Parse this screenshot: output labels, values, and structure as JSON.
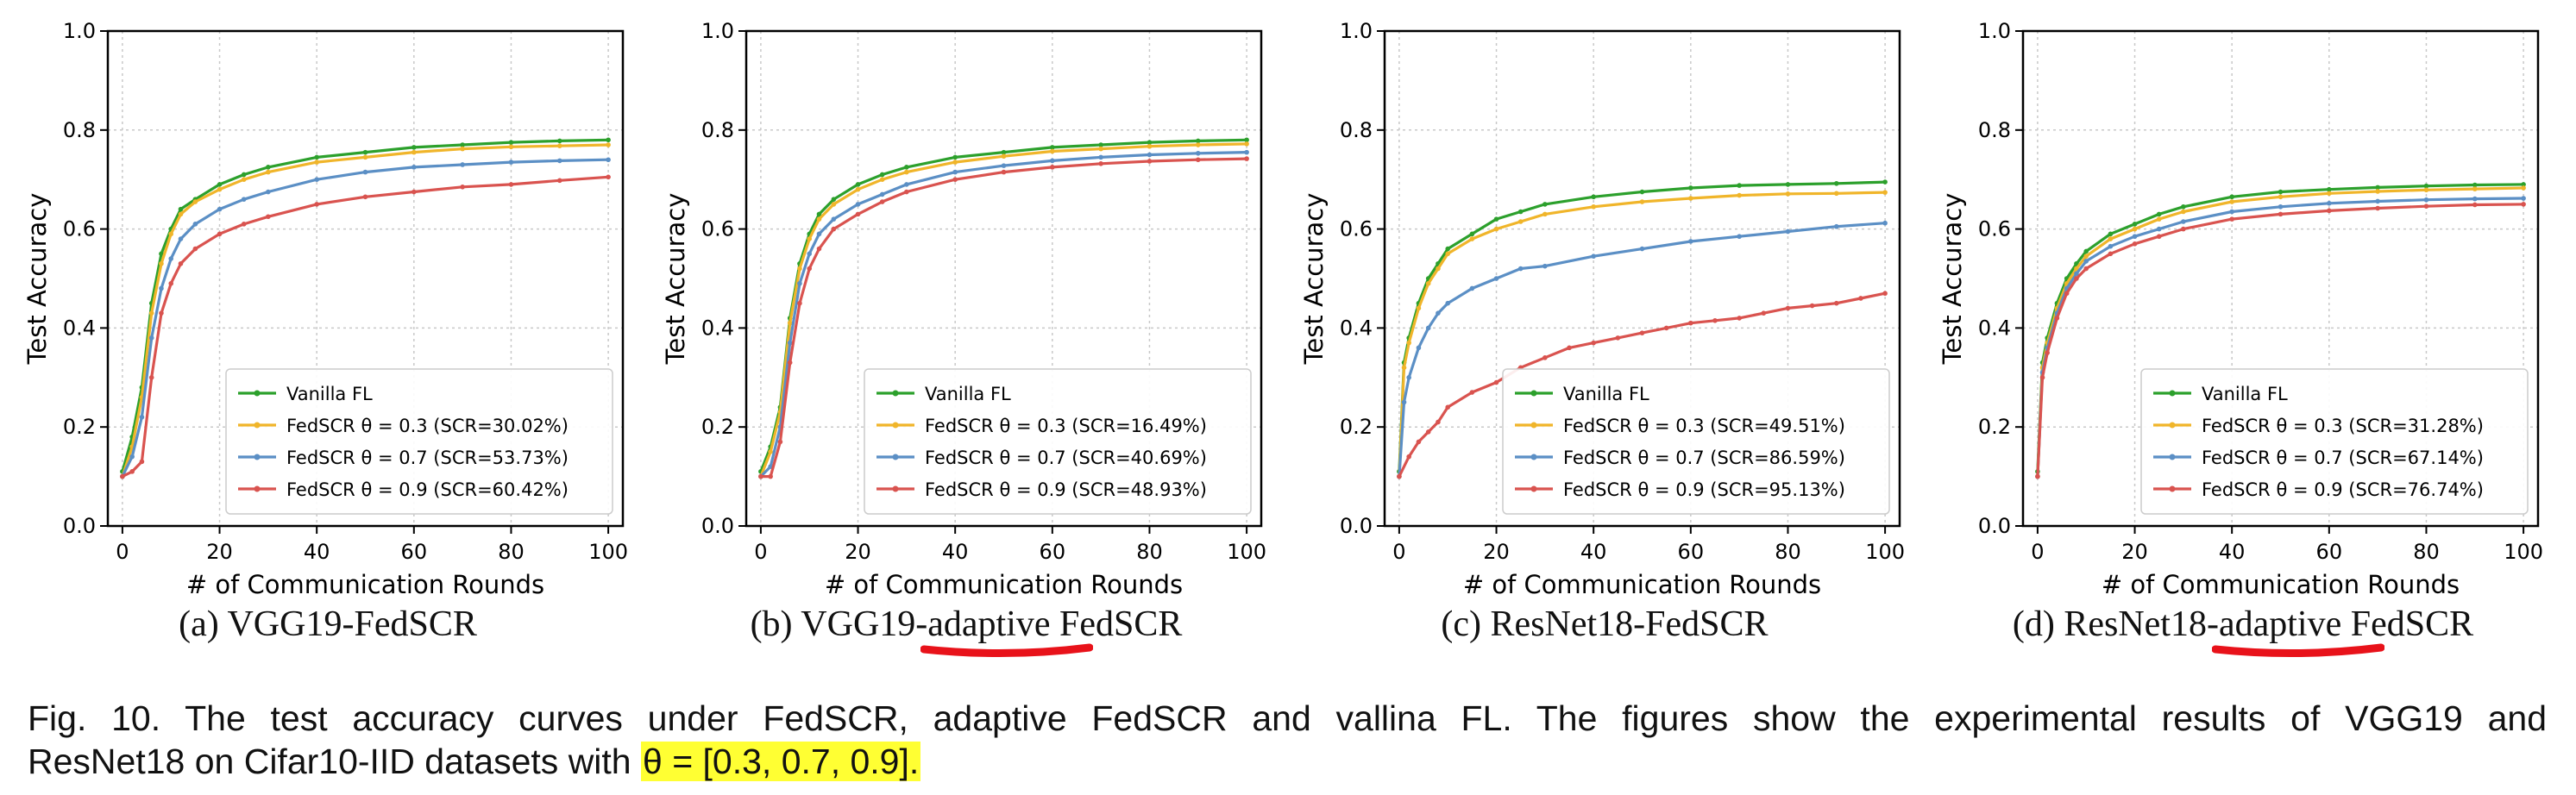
{
  "colors": {
    "vanilla": "#2ca02c",
    "theta03": "#f0b52a",
    "theta07": "#5b8fc5",
    "theta09": "#d9534f",
    "underline": "#e8121a",
    "highlight": "#ffff33"
  },
  "subcaptions": [
    {
      "prefix": "(a)  VGG19-FedSCR",
      "highlight": "",
      "suffix": ""
    },
    {
      "prefix": "(b)  VGG19-",
      "highlight": "adaptive",
      "suffix": " FedSCR"
    },
    {
      "prefix": "(c)  ResNet18-FedSCR",
      "highlight": "",
      "suffix": ""
    },
    {
      "prefix": "(d)  ResNet18-",
      "highlight": "adaptive",
      "suffix": " FedSCR"
    }
  ],
  "caption": {
    "line1": "Fig. 10. The test accuracy curves under FedSCR, adaptive FedSCR and vallina FL. The figures show the experimental results of VGG19 and",
    "line2_prefix": "ResNet18 on Cifar10-IID datasets with ",
    "highlight": "θ = [0.3, 0.7, 0.9]."
  },
  "chart_data": [
    {
      "type": "line",
      "xlabel": "# of Communication Rounds",
      "ylabel": "Test Accuracy",
      "xlim": [
        -3,
        103
      ],
      "ylim": [
        0,
        1.0
      ],
      "xticks": [
        0,
        20,
        40,
        60,
        80,
        100
      ],
      "yticks": [
        0.0,
        0.2,
        0.4,
        0.6,
        0.8,
        1.0
      ],
      "grid": true,
      "legend": "bottom-right",
      "series": [
        {
          "name": "Vanilla FL",
          "x": [
            0,
            2,
            4,
            6,
            8,
            10,
            12,
            15,
            20,
            25,
            30,
            40,
            50,
            60,
            70,
            80,
            90,
            100
          ],
          "y": [
            0.11,
            0.18,
            0.28,
            0.45,
            0.55,
            0.6,
            0.64,
            0.66,
            0.69,
            0.71,
            0.725,
            0.745,
            0.755,
            0.765,
            0.77,
            0.775,
            0.778,
            0.78
          ]
        },
        {
          "name": "FedSCR θ = 0.3 (SCR=30.02%)",
          "x": [
            0,
            2,
            4,
            6,
            8,
            10,
            12,
            15,
            20,
            25,
            30,
            40,
            50,
            60,
            70,
            80,
            90,
            100
          ],
          "y": [
            0.1,
            0.16,
            0.26,
            0.43,
            0.53,
            0.59,
            0.63,
            0.655,
            0.68,
            0.7,
            0.715,
            0.735,
            0.745,
            0.755,
            0.762,
            0.766,
            0.768,
            0.77
          ]
        },
        {
          "name": "FedSCR θ = 0.7 (SCR=53.73%)",
          "x": [
            0,
            2,
            4,
            6,
            8,
            10,
            12,
            15,
            20,
            25,
            30,
            40,
            50,
            60,
            70,
            80,
            90,
            100
          ],
          "y": [
            0.1,
            0.14,
            0.22,
            0.38,
            0.48,
            0.54,
            0.58,
            0.61,
            0.64,
            0.66,
            0.675,
            0.7,
            0.715,
            0.725,
            0.73,
            0.735,
            0.738,
            0.74
          ]
        },
        {
          "name": "FedSCR θ = 0.9 (SCR=60.42%)",
          "x": [
            0,
            2,
            4,
            6,
            8,
            10,
            12,
            15,
            20,
            25,
            30,
            40,
            50,
            60,
            70,
            80,
            90,
            100
          ],
          "y": [
            0.1,
            0.11,
            0.13,
            0.3,
            0.43,
            0.49,
            0.53,
            0.56,
            0.59,
            0.61,
            0.625,
            0.65,
            0.665,
            0.675,
            0.685,
            0.69,
            0.698,
            0.705
          ]
        }
      ]
    },
    {
      "type": "line",
      "xlabel": "# of Communication Rounds",
      "ylabel": "Test Accuracy",
      "xlim": [
        -3,
        103
      ],
      "ylim": [
        0,
        1.0
      ],
      "xticks": [
        0,
        20,
        40,
        60,
        80,
        100
      ],
      "yticks": [
        0.0,
        0.2,
        0.4,
        0.6,
        0.8,
        1.0
      ],
      "grid": true,
      "legend": "bottom-right",
      "series": [
        {
          "name": "Vanilla FL",
          "x": [
            0,
            2,
            4,
            6,
            8,
            10,
            12,
            15,
            20,
            25,
            30,
            40,
            50,
            60,
            70,
            80,
            90,
            100
          ],
          "y": [
            0.11,
            0.16,
            0.24,
            0.42,
            0.53,
            0.59,
            0.63,
            0.66,
            0.69,
            0.71,
            0.725,
            0.745,
            0.755,
            0.765,
            0.77,
            0.775,
            0.778,
            0.78
          ]
        },
        {
          "name": "FedSCR θ = 0.3 (SCR=16.49%)",
          "x": [
            0,
            2,
            4,
            6,
            8,
            10,
            12,
            15,
            20,
            25,
            30,
            40,
            50,
            60,
            70,
            80,
            90,
            100
          ],
          "y": [
            0.1,
            0.15,
            0.23,
            0.41,
            0.52,
            0.58,
            0.62,
            0.65,
            0.68,
            0.7,
            0.715,
            0.735,
            0.747,
            0.757,
            0.762,
            0.767,
            0.77,
            0.772
          ]
        },
        {
          "name": "FedSCR θ = 0.7 (SCR=40.69%)",
          "x": [
            0,
            2,
            4,
            6,
            8,
            10,
            12,
            15,
            20,
            25,
            30,
            40,
            50,
            60,
            70,
            80,
            90,
            100
          ],
          "y": [
            0.1,
            0.12,
            0.2,
            0.37,
            0.49,
            0.55,
            0.59,
            0.62,
            0.65,
            0.67,
            0.69,
            0.715,
            0.728,
            0.738,
            0.745,
            0.75,
            0.753,
            0.755
          ]
        },
        {
          "name": "FedSCR θ = 0.9 (SCR=48.93%)",
          "x": [
            0,
            2,
            4,
            6,
            8,
            10,
            12,
            15,
            20,
            25,
            30,
            40,
            50,
            60,
            70,
            80,
            90,
            100
          ],
          "y": [
            0.1,
            0.1,
            0.17,
            0.33,
            0.45,
            0.52,
            0.56,
            0.6,
            0.63,
            0.655,
            0.675,
            0.7,
            0.715,
            0.725,
            0.732,
            0.737,
            0.74,
            0.742
          ]
        }
      ]
    },
    {
      "type": "line",
      "xlabel": "# of Communication Rounds",
      "ylabel": "Test Accuracy",
      "xlim": [
        -3,
        103
      ],
      "ylim": [
        0,
        1.0
      ],
      "xticks": [
        0,
        20,
        40,
        60,
        80,
        100
      ],
      "yticks": [
        0.0,
        0.2,
        0.4,
        0.6,
        0.8,
        1.0
      ],
      "grid": true,
      "legend": "bottom-right",
      "series": [
        {
          "name": "Vanilla FL",
          "x": [
            0,
            1,
            2,
            4,
            6,
            8,
            10,
            15,
            20,
            25,
            30,
            40,
            50,
            60,
            70,
            80,
            90,
            100
          ],
          "y": [
            0.11,
            0.33,
            0.38,
            0.45,
            0.5,
            0.53,
            0.56,
            0.59,
            0.62,
            0.635,
            0.65,
            0.665,
            0.675,
            0.683,
            0.688,
            0.69,
            0.692,
            0.695
          ]
        },
        {
          "name": "FedSCR θ = 0.3 (SCR=49.51%)",
          "x": [
            0,
            1,
            2,
            4,
            6,
            8,
            10,
            15,
            20,
            25,
            30,
            40,
            50,
            60,
            70,
            80,
            90,
            100
          ],
          "y": [
            0.1,
            0.32,
            0.37,
            0.44,
            0.49,
            0.52,
            0.55,
            0.58,
            0.6,
            0.615,
            0.63,
            0.645,
            0.655,
            0.662,
            0.668,
            0.671,
            0.672,
            0.674
          ]
        },
        {
          "name": "FedSCR θ = 0.7 (SCR=86.59%)",
          "x": [
            0,
            1,
            2,
            4,
            6,
            8,
            10,
            15,
            20,
            25,
            30,
            40,
            50,
            60,
            70,
            80,
            90,
            100
          ],
          "y": [
            0.1,
            0.25,
            0.3,
            0.36,
            0.4,
            0.43,
            0.45,
            0.48,
            0.5,
            0.52,
            0.525,
            0.545,
            0.56,
            0.575,
            0.585,
            0.595,
            0.605,
            0.612
          ]
        },
        {
          "name": "FedSCR θ = 0.9 (SCR=95.13%)",
          "x": [
            0,
            2,
            4,
            6,
            8,
            10,
            15,
            20,
            25,
            30,
            35,
            40,
            45,
            50,
            55,
            60,
            65,
            70,
            75,
            80,
            85,
            90,
            95,
            100
          ],
          "y": [
            0.1,
            0.14,
            0.17,
            0.19,
            0.21,
            0.24,
            0.27,
            0.29,
            0.32,
            0.34,
            0.36,
            0.37,
            0.38,
            0.39,
            0.4,
            0.41,
            0.415,
            0.42,
            0.43,
            0.44,
            0.445,
            0.45,
            0.46,
            0.47
          ]
        }
      ]
    },
    {
      "type": "line",
      "xlabel": "# of Communication Rounds",
      "ylabel": "Test Accuracy",
      "xlim": [
        -3,
        103
      ],
      "ylim": [
        0,
        1.0
      ],
      "xticks": [
        0,
        20,
        40,
        60,
        80,
        100
      ],
      "yticks": [
        0.0,
        0.2,
        0.4,
        0.6,
        0.8,
        1.0
      ],
      "grid": true,
      "legend": "bottom-right",
      "series": [
        {
          "name": "Vanilla FL",
          "x": [
            0,
            1,
            2,
            4,
            6,
            8,
            10,
            15,
            20,
            25,
            30,
            40,
            50,
            60,
            70,
            80,
            90,
            100
          ],
          "y": [
            0.11,
            0.33,
            0.38,
            0.45,
            0.5,
            0.53,
            0.555,
            0.59,
            0.61,
            0.63,
            0.645,
            0.665,
            0.675,
            0.68,
            0.684,
            0.687,
            0.689,
            0.69
          ]
        },
        {
          "name": "FedSCR θ = 0.3 (SCR=31.28%)",
          "x": [
            0,
            1,
            2,
            4,
            6,
            8,
            10,
            15,
            20,
            25,
            30,
            40,
            50,
            60,
            70,
            80,
            90,
            100
          ],
          "y": [
            0.1,
            0.32,
            0.37,
            0.44,
            0.49,
            0.52,
            0.545,
            0.58,
            0.6,
            0.62,
            0.635,
            0.655,
            0.665,
            0.672,
            0.676,
            0.679,
            0.681,
            0.683
          ]
        },
        {
          "name": "FedSCR θ = 0.7 (SCR=67.14%)",
          "x": [
            0,
            1,
            2,
            4,
            6,
            8,
            10,
            15,
            20,
            25,
            30,
            40,
            50,
            60,
            70,
            80,
            90,
            100
          ],
          "y": [
            0.1,
            0.31,
            0.36,
            0.43,
            0.48,
            0.51,
            0.535,
            0.565,
            0.585,
            0.6,
            0.615,
            0.635,
            0.645,
            0.652,
            0.656,
            0.659,
            0.661,
            0.662
          ]
        },
        {
          "name": "FedSCR θ = 0.9 (SCR=76.74%)",
          "x": [
            0,
            1,
            2,
            4,
            6,
            8,
            10,
            15,
            20,
            25,
            30,
            40,
            50,
            60,
            70,
            80,
            90,
            100
          ],
          "y": [
            0.1,
            0.3,
            0.35,
            0.42,
            0.47,
            0.5,
            0.52,
            0.55,
            0.57,
            0.585,
            0.6,
            0.62,
            0.63,
            0.637,
            0.642,
            0.646,
            0.649,
            0.65
          ]
        }
      ]
    }
  ]
}
